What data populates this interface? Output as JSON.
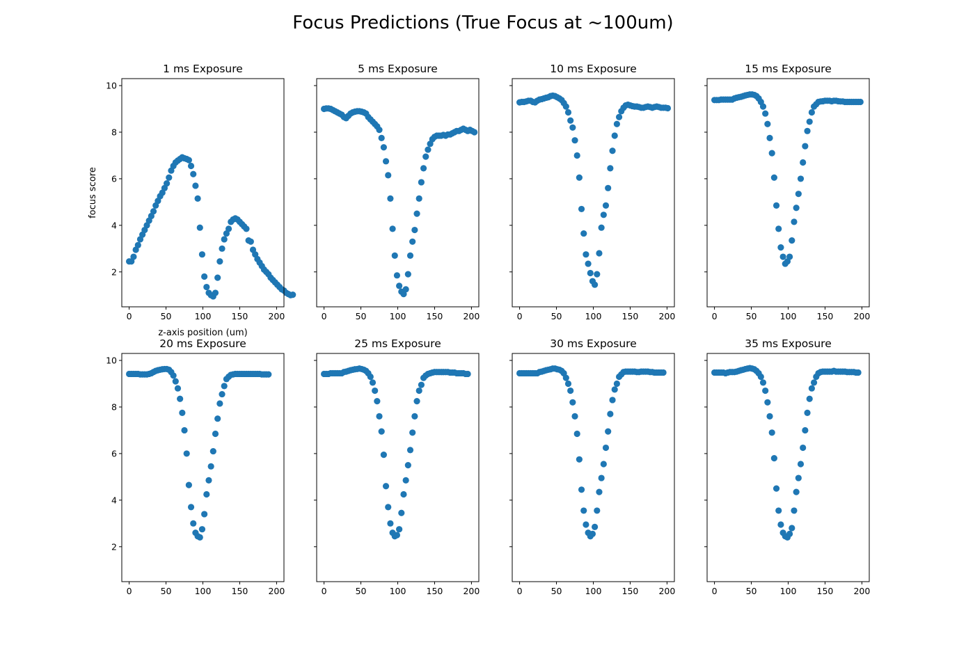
{
  "figure": {
    "title": "Focus Predictions (True Focus at ~100um)",
    "marker_color": "#1f77b4"
  },
  "chart_data": [
    {
      "type": "scatter",
      "title": "1 ms Exposure",
      "xlabel": "z-axis position (um)",
      "ylabel": "focus score",
      "xlim": [
        -10,
        210
      ],
      "ylim": [
        0.5,
        10.3
      ],
      "xticks": [
        0,
        50,
        100,
        150,
        200
      ],
      "yticks": [
        2,
        4,
        6,
        8,
        10
      ],
      "x_start": 0,
      "x_step": 3,
      "values": [
        2.45,
        2.45,
        2.65,
        2.95,
        3.15,
        3.4,
        3.6,
        3.8,
        4.0,
        4.2,
        4.4,
        4.6,
        4.85,
        5.05,
        5.25,
        5.4,
        5.6,
        5.8,
        6.05,
        6.35,
        6.55,
        6.7,
        6.78,
        6.85,
        6.92,
        6.88,
        6.85,
        6.8,
        6.55,
        6.2,
        5.7,
        5.15,
        3.9,
        2.75,
        1.8,
        1.35,
        1.1,
        1.0,
        0.95,
        1.1,
        1.75,
        2.45,
        3.0,
        3.4,
        3.65,
        3.85,
        4.15,
        4.25,
        4.3,
        4.25,
        4.15,
        4.05,
        3.95,
        3.85,
        3.35,
        3.3,
        2.95,
        2.75,
        2.55,
        2.4,
        2.25,
        2.1,
        2.0,
        1.9,
        1.75,
        1.65,
        1.55,
        1.45,
        1.35,
        1.25,
        1.2,
        1.1,
        1.05,
        1.0,
        1.02
      ]
    },
    {
      "type": "scatter",
      "title": "5 ms Exposure",
      "xlabel": "",
      "ylabel": "",
      "xlim": [
        -10,
        210
      ],
      "ylim": [
        0.5,
        10.3
      ],
      "xticks": [
        0,
        50,
        100,
        150,
        200
      ],
      "yticks": [
        2,
        4,
        6,
        8,
        10
      ],
      "x_start": 0,
      "x_step": 3,
      "values": [
        9.0,
        9.02,
        9.02,
        9.0,
        8.95,
        8.9,
        8.85,
        8.8,
        8.75,
        8.65,
        8.6,
        8.7,
        8.8,
        8.85,
        8.88,
        8.9,
        8.9,
        8.88,
        8.85,
        8.8,
        8.65,
        8.55,
        8.45,
        8.35,
        8.25,
        8.1,
        7.75,
        7.35,
        6.75,
        6.15,
        5.15,
        3.85,
        2.7,
        1.85,
        1.4,
        1.15,
        1.05,
        1.25,
        1.9,
        2.7,
        3.3,
        3.8,
        4.5,
        5.15,
        5.85,
        6.45,
        6.95,
        7.25,
        7.5,
        7.7,
        7.8,
        7.85,
        7.85,
        7.85,
        7.88,
        7.85,
        7.9,
        7.9,
        7.95,
        8.0,
        8.05,
        8.05,
        8.1,
        8.15,
        8.1,
        8.05,
        8.1,
        8.05,
        8.0
      ]
    },
    {
      "type": "scatter",
      "title": "10 ms Exposure",
      "xlabel": "",
      "ylabel": "",
      "xlim": [
        -10,
        210
      ],
      "ylim": [
        0.5,
        10.3
      ],
      "xticks": [
        0,
        50,
        100,
        150,
        200
      ],
      "yticks": [
        2,
        4,
        6,
        8,
        10
      ],
      "x_start": 0,
      "x_step": 3,
      "values": [
        9.28,
        9.3,
        9.3,
        9.32,
        9.35,
        9.35,
        9.3,
        9.28,
        9.35,
        9.4,
        9.42,
        9.45,
        9.48,
        9.5,
        9.55,
        9.57,
        9.55,
        9.5,
        9.45,
        9.38,
        9.25,
        9.1,
        8.85,
        8.5,
        8.2,
        7.65,
        7.0,
        6.05,
        4.7,
        3.65,
        2.75,
        2.35,
        1.95,
        1.6,
        1.45,
        1.9,
        2.8,
        3.9,
        4.45,
        4.85,
        5.6,
        6.45,
        7.2,
        7.85,
        8.35,
        8.65,
        8.9,
        9.05,
        9.15,
        9.18,
        9.15,
        9.12,
        9.1,
        9.1,
        9.08,
        9.05,
        9.05,
        9.08,
        9.1,
        9.08,
        9.05,
        9.08,
        9.1,
        9.08,
        9.05,
        9.05,
        9.05,
        9.03
      ]
    },
    {
      "type": "scatter",
      "title": "15 ms Exposure",
      "xlabel": "",
      "ylabel": "",
      "xlim": [
        -10,
        210
      ],
      "ylim": [
        0.5,
        10.3
      ],
      "xticks": [
        0,
        50,
        100,
        150,
        200
      ],
      "yticks": [
        2,
        4,
        6,
        8,
        10
      ],
      "x_start": 0,
      "x_step": 3,
      "values": [
        9.38,
        9.38,
        9.38,
        9.4,
        9.4,
        9.4,
        9.4,
        9.4,
        9.4,
        9.45,
        9.48,
        9.5,
        9.52,
        9.55,
        9.58,
        9.6,
        9.62,
        9.62,
        9.6,
        9.55,
        9.45,
        9.3,
        9.1,
        8.8,
        8.35,
        7.75,
        7.1,
        6.05,
        4.85,
        3.85,
        3.05,
        2.65,
        2.35,
        2.45,
        2.65,
        3.35,
        4.15,
        4.75,
        5.35,
        6.0,
        6.7,
        7.4,
        8.05,
        8.45,
        8.85,
        9.1,
        9.2,
        9.3,
        9.32,
        9.33,
        9.35,
        9.35,
        9.35,
        9.33,
        9.35,
        9.35,
        9.33,
        9.32,
        9.32,
        9.3,
        9.3,
        9.3,
        9.3,
        9.3,
        9.3,
        9.3,
        9.3
      ]
    },
    {
      "type": "scatter",
      "title": "20 ms Exposure",
      "xlabel": "",
      "ylabel": "",
      "xlim": [
        -10,
        210
      ],
      "ylim": [
        0.5,
        10.3
      ],
      "xticks": [
        0,
        50,
        100,
        150,
        200
      ],
      "yticks": [
        2,
        4,
        6,
        8,
        10
      ],
      "x_start": 0,
      "x_step": 3,
      "values": [
        9.42,
        9.42,
        9.42,
        9.42,
        9.42,
        9.4,
        9.4,
        9.4,
        9.4,
        9.42,
        9.45,
        9.5,
        9.55,
        9.58,
        9.6,
        9.62,
        9.63,
        9.63,
        9.6,
        9.5,
        9.35,
        9.1,
        8.8,
        8.35,
        7.75,
        7.0,
        6.0,
        4.65,
        3.7,
        3.0,
        2.6,
        2.45,
        2.4,
        2.75,
        3.4,
        4.25,
        4.85,
        5.45,
        6.1,
        6.85,
        7.5,
        8.15,
        8.55,
        8.9,
        9.2,
        9.3,
        9.38,
        9.4,
        9.42,
        9.42,
        9.42,
        9.42,
        9.42,
        9.42,
        9.42,
        9.42,
        9.42,
        9.42,
        9.42,
        9.42,
        9.4,
        9.4,
        9.4,
        9.4
      ]
    },
    {
      "type": "scatter",
      "title": "25 ms Exposure",
      "xlabel": "",
      "ylabel": "",
      "xlim": [
        -10,
        210
      ],
      "ylim": [
        0.5,
        10.3
      ],
      "xticks": [
        0,
        50,
        100,
        150,
        200
      ],
      "yticks": [
        2,
        4,
        6,
        8,
        10
      ],
      "x_start": 0,
      "x_step": 3,
      "values": [
        9.42,
        9.42,
        9.42,
        9.45,
        9.45,
        9.45,
        9.45,
        9.45,
        9.45,
        9.5,
        9.52,
        9.55,
        9.58,
        9.6,
        9.62,
        9.63,
        9.65,
        9.63,
        9.6,
        9.55,
        9.45,
        9.3,
        9.05,
        8.7,
        8.25,
        7.6,
        6.95,
        5.95,
        4.6,
        3.7,
        3.0,
        2.6,
        2.45,
        2.5,
        2.75,
        3.45,
        4.25,
        4.85,
        5.5,
        6.15,
        6.9,
        7.6,
        8.25,
        8.7,
        8.95,
        9.25,
        9.35,
        9.42,
        9.45,
        9.48,
        9.5,
        9.5,
        9.5,
        9.5,
        9.5,
        9.5,
        9.5,
        9.48,
        9.48,
        9.48,
        9.45,
        9.45,
        9.45,
        9.45,
        9.42,
        9.42
      ]
    },
    {
      "type": "scatter",
      "title": "30 ms Exposure",
      "xlabel": "",
      "ylabel": "",
      "xlim": [
        -10,
        210
      ],
      "ylim": [
        0.5,
        10.3
      ],
      "xticks": [
        0,
        50,
        100,
        150,
        200
      ],
      "yticks": [
        2,
        4,
        6,
        8,
        10
      ],
      "x_start": 0,
      "x_step": 3,
      "values": [
        9.45,
        9.45,
        9.45,
        9.45,
        9.45,
        9.45,
        9.45,
        9.45,
        9.45,
        9.5,
        9.52,
        9.55,
        9.58,
        9.6,
        9.62,
        9.65,
        9.65,
        9.62,
        9.6,
        9.55,
        9.45,
        9.25,
        9.0,
        8.7,
        8.2,
        7.6,
        6.85,
        5.75,
        4.45,
        3.55,
        2.95,
        2.6,
        2.45,
        2.55,
        2.85,
        3.55,
        4.35,
        4.95,
        5.55,
        6.25,
        6.95,
        7.7,
        8.3,
        8.75,
        9.0,
        9.3,
        9.4,
        9.5,
        9.52,
        9.52,
        9.52,
        9.52,
        9.52,
        9.5,
        9.5,
        9.52,
        9.52,
        9.52,
        9.52,
        9.5,
        9.5,
        9.48,
        9.48,
        9.48,
        9.48,
        9.48
      ]
    },
    {
      "type": "scatter",
      "title": "35 ms Exposure",
      "xlabel": "",
      "ylabel": "",
      "xlim": [
        -10,
        210
      ],
      "ylim": [
        0.5,
        10.3
      ],
      "xticks": [
        0,
        50,
        100,
        150,
        200
      ],
      "yticks": [
        2,
        4,
        6,
        8,
        10
      ],
      "x_start": 0,
      "x_step": 3,
      "values": [
        9.48,
        9.48,
        9.48,
        9.48,
        9.48,
        9.45,
        9.48,
        9.5,
        9.5,
        9.5,
        9.52,
        9.55,
        9.58,
        9.6,
        9.63,
        9.65,
        9.67,
        9.65,
        9.62,
        9.55,
        9.45,
        9.3,
        9.05,
        8.7,
        8.2,
        7.6,
        6.9,
        5.8,
        4.5,
        3.55,
        2.95,
        2.6,
        2.45,
        2.4,
        2.55,
        2.8,
        3.55,
        4.35,
        4.95,
        5.55,
        6.25,
        7.0,
        7.75,
        8.35,
        8.8,
        9.05,
        9.3,
        9.45,
        9.5,
        9.52,
        9.52,
        9.52,
        9.52,
        9.52,
        9.55,
        9.52,
        9.52,
        9.52,
        9.52,
        9.52,
        9.5,
        9.5,
        9.5,
        9.5,
        9.48,
        9.48
      ]
    }
  ]
}
